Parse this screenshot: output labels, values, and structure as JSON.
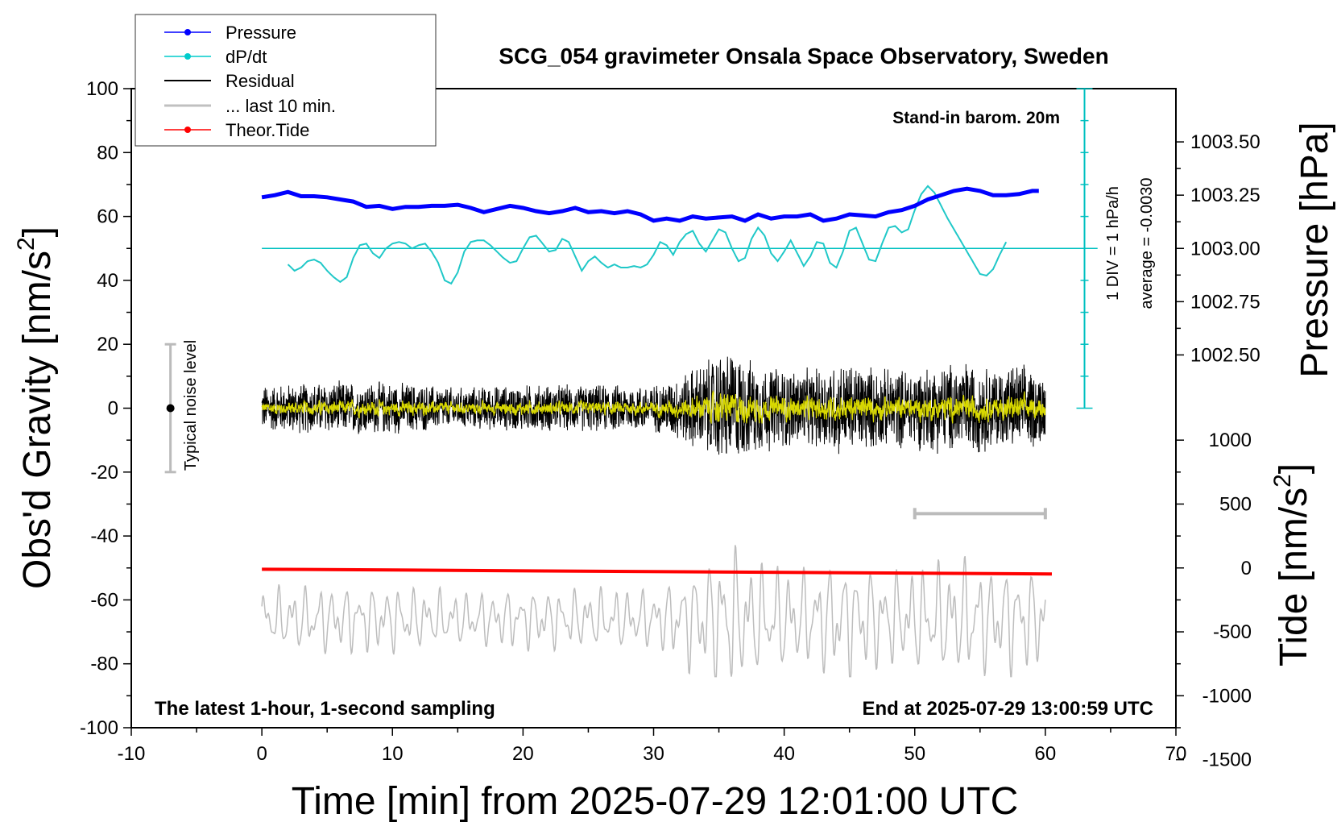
{
  "chart_data": {
    "type": "line",
    "title": "SCG_054 gravimeter Onsala Space Observatory, Sweden",
    "xlabel": "Time [min] from 2025-07-29 12:01:00 UTC",
    "ylabel_prefix": "Obs'd Gravity [nm/s",
    "ylabel_sup": "2",
    "ylabel_suffix": "]",
    "xlim": [
      -10,
      70
    ],
    "ylim": [
      -100,
      100
    ],
    "x_ticks": [
      -10,
      0,
      10,
      20,
      30,
      40,
      50,
      60,
      70
    ],
    "x_tick_labels": [
      "-10",
      "0",
      "10",
      "20",
      "30",
      "40",
      "50",
      "60",
      "70"
    ],
    "y_ticks": [
      -100,
      -80,
      -60,
      -40,
      -20,
      0,
      20,
      40,
      60,
      80,
      100
    ],
    "y_tick_labels": [
      "-100",
      "-80",
      "-60",
      "-40",
      "-20",
      "0",
      "20",
      "40",
      "60",
      "80",
      "100"
    ],
    "pressure_axis": {
      "label": "Pressure [hPa]",
      "ticks": [
        1002.5,
        1002.75,
        1003.0,
        1003.25,
        1003.5
      ],
      "tick_labels": [
        "1002.50",
        "1002.75",
        "1003.00",
        "1003.25",
        "1003.50"
      ],
      "gravity_at_1003": 50,
      "gravity_per_hPa": 66.67
    },
    "tide_axis": {
      "label_prefix": "Tide [nm/s",
      "label_sup": "2",
      "label_suffix": "]",
      "ticks": [
        1000,
        500,
        0,
        -500,
        -1000,
        -1500
      ],
      "tick_labels": [
        "1000",
        "500",
        "0",
        "-500",
        "-1000",
        "-1500"
      ],
      "gravity_at_0": -50,
      "gravity_per_unit": 0.04
    },
    "legend": {
      "position": "top-left",
      "entries": [
        {
          "label": "Pressure",
          "color": "#0000ff",
          "marker": true
        },
        {
          "label": "dP/dt",
          "color": "#00cccc",
          "marker": true
        },
        {
          "label": "Residual",
          "color": "#000000",
          "marker": false
        },
        {
          "label": "... last 10 min.",
          "color": "#c0c0c0",
          "marker": false
        },
        {
          "label": "Theor.Tide",
          "color": "#ff0000",
          "marker": true
        }
      ]
    },
    "annotations": {
      "barometer": "Stand-in barom. 20m",
      "div_scale": "1 DIV = 1 hPa/h",
      "average": "average = -0.0030",
      "noise_label": "Typical noise level",
      "bottom_left": "The latest 1-hour, 1-second sampling",
      "bottom_right": "End at 2025-07-29 13:00:59 UTC"
    },
    "noise_bar": {
      "x": -7,
      "y": 0,
      "low": -20,
      "high": 20
    },
    "last10_bar": {
      "x_start": 50,
      "x_end": 60,
      "y": -33
    },
    "dpdt_scale_bar": {
      "x": 63,
      "y_low": 0,
      "y_high": 100,
      "baseline": 50,
      "divisions": 10
    },
    "series": [
      {
        "name": "Pressure",
        "color": "#0000ff",
        "unit": "hPa",
        "x": [
          0,
          1,
          2,
          3,
          4,
          5,
          6,
          7,
          8,
          9,
          10,
          11,
          12,
          13,
          14,
          15,
          16,
          17,
          18,
          19,
          20,
          21,
          22,
          23,
          24,
          25,
          26,
          27,
          28,
          29,
          30,
          31,
          32,
          33,
          34,
          35,
          36,
          37,
          38,
          39,
          40,
          41,
          42,
          43,
          44,
          45,
          46,
          47,
          48,
          49,
          50,
          51,
          52,
          53,
          54,
          55,
          56,
          57,
          58,
          59,
          59.5
        ],
        "values": [
          1003.24,
          1003.25,
          1003.265,
          1003.245,
          1003.245,
          1003.24,
          1003.23,
          1003.22,
          1003.195,
          1003.2,
          1003.185,
          1003.195,
          1003.195,
          1003.2,
          1003.2,
          1003.205,
          1003.19,
          1003.17,
          1003.185,
          1003.2,
          1003.19,
          1003.175,
          1003.165,
          1003.175,
          1003.19,
          1003.17,
          1003.175,
          1003.165,
          1003.175,
          1003.16,
          1003.13,
          1003.14,
          1003.13,
          1003.15,
          1003.14,
          1003.145,
          1003.15,
          1003.13,
          1003.16,
          1003.14,
          1003.15,
          1003.15,
          1003.16,
          1003.13,
          1003.14,
          1003.16,
          1003.155,
          1003.15,
          1003.17,
          1003.18,
          1003.2,
          1003.23,
          1003.25,
          1003.27,
          1003.28,
          1003.27,
          1003.25,
          1003.25,
          1003.255,
          1003.27,
          1003.27
        ]
      },
      {
        "name": "dP/dt",
        "color": "#00cccc",
        "unit": "gravity-axis units (50 = 0 hPa/h)",
        "x": [
          2,
          2.5,
          3,
          3.5,
          4,
          4.5,
          5,
          5.5,
          6,
          6.5,
          7,
          7.5,
          8,
          8.5,
          9,
          9.5,
          10,
          10.5,
          11,
          11.5,
          12,
          12.5,
          13,
          13.5,
          14,
          14.5,
          15,
          15.5,
          16,
          16.5,
          17,
          17.5,
          18,
          18.5,
          19,
          19.5,
          20,
          20.5,
          21,
          21.5,
          22,
          22.5,
          23,
          23.5,
          24,
          24.5,
          25,
          25.5,
          26,
          26.5,
          27,
          27.5,
          28,
          28.5,
          29,
          29.5,
          30,
          30.5,
          31,
          31.5,
          32,
          32.5,
          33,
          33.5,
          34,
          34.5,
          35,
          35.5,
          36,
          36.5,
          37,
          37.5,
          38,
          38.5,
          39,
          39.5,
          40,
          40.5,
          41,
          41.5,
          42,
          42.5,
          43,
          43.5,
          44,
          44.5,
          45,
          45.5,
          46,
          46.5,
          47,
          47.5,
          48,
          48.5,
          49,
          49.5,
          50,
          50.5,
          51,
          51.5,
          52,
          52.5,
          53,
          53.5,
          54,
          54.5,
          55,
          55.5,
          56,
          56.5,
          57
        ],
        "values": [
          45,
          43,
          44,
          46,
          46.5,
          45.5,
          43,
          41,
          39.5,
          41,
          47,
          51,
          51.5,
          48.5,
          47,
          50,
          51.5,
          52,
          51.5,
          50,
          51,
          51.5,
          49,
          45.5,
          40,
          39,
          42.5,
          49,
          52,
          52.5,
          52.5,
          51,
          49,
          47,
          45.5,
          46,
          50,
          53.5,
          54,
          51.5,
          49,
          49.5,
          53,
          52,
          47.5,
          43,
          46,
          47.5,
          45.5,
          44,
          45,
          44,
          44,
          44.5,
          44,
          45,
          48,
          52,
          51,
          48,
          52,
          54.5,
          55.5,
          51.5,
          49,
          52.5,
          56,
          55,
          50,
          46,
          47,
          53,
          56.5,
          54,
          48.5,
          46,
          49,
          52.5,
          48.5,
          44.5,
          47.5,
          52,
          51.5,
          45.5,
          44,
          49,
          55.5,
          56.5,
          51.5,
          46.5,
          46,
          51.5,
          56.5,
          57,
          55,
          56,
          62,
          67,
          69.5,
          67.5,
          63.5,
          59.5,
          56,
          52.5,
          49,
          45.5,
          42,
          41.5,
          43.5,
          48,
          52
        ]
      },
      {
        "name": "Residual",
        "color": "#000000",
        "unit": "nm/s2",
        "x": [
          0,
          60
        ],
        "envelope_x": [
          0,
          5,
          10,
          15,
          20,
          25,
          30,
          32,
          33,
          34,
          35,
          36,
          37,
          38,
          40,
          42,
          44,
          46,
          48,
          50,
          52,
          54,
          56,
          58,
          60
        ],
        "envelope": [
          8,
          9,
          9,
          7,
          8,
          8,
          8,
          11,
          14,
          16,
          19,
          20,
          17,
          15,
          14,
          13,
          16,
          15,
          13,
          14,
          15,
          16,
          14,
          15,
          12
        ]
      },
      {
        "name": "... last 10 min.",
        "color": "#c0c0c0",
        "unit": "nm/s2 (offset)",
        "x": [
          0,
          60
        ],
        "baseline": -66,
        "amplitude": 12
      },
      {
        "name": "Theor.Tide",
        "color": "#ff0000",
        "unit": "nm/s2",
        "x": [
          0,
          60.5
        ],
        "values": [
          -10,
          -47
        ]
      }
    ]
  }
}
